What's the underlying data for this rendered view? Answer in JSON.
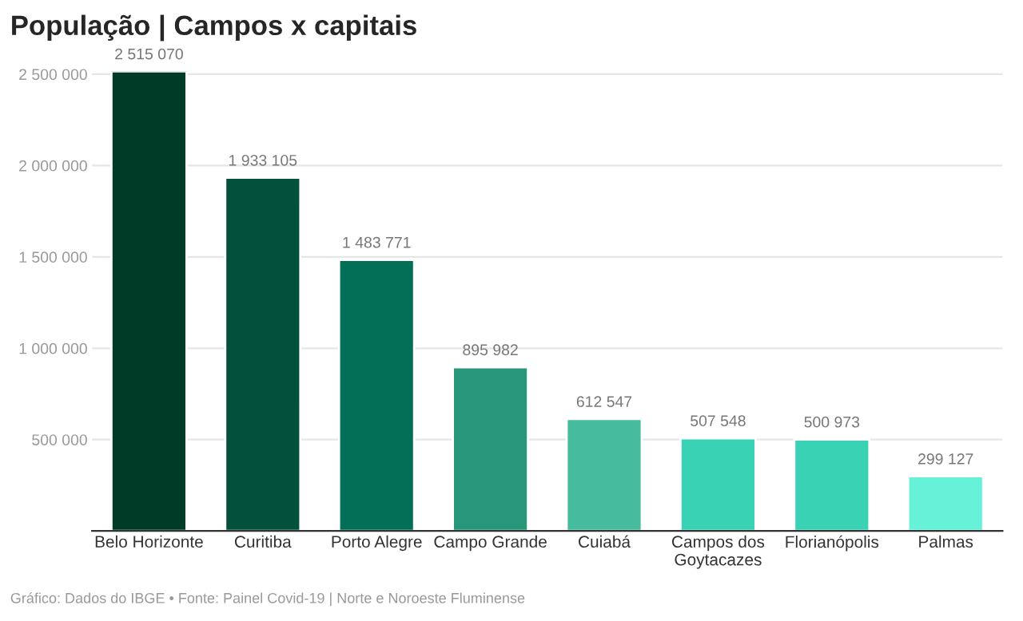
{
  "chart_data": {
    "type": "bar",
    "title": "População | Campos x capitais",
    "categories": [
      "Belo Horizonte",
      "Curitiba",
      "Porto Alegre",
      "Campo Grande",
      "Cuiabá",
      "Campos dos Goytacazes",
      "Florianópolis",
      "Palmas"
    ],
    "values": [
      2515070,
      1933105,
      1483771,
      895982,
      612547,
      507548,
      500973,
      299127
    ],
    "colors": [
      "#003b27",
      "#03513c",
      "#036f57",
      "#28967a",
      "#47bb9d",
      "#39d2b4",
      "#39d2b4",
      "#66f2d8"
    ],
    "value_labels": [
      "2 515 070",
      "1 933 105",
      "1 483 771",
      "895 982",
      "612 547",
      "507 548",
      "500 973",
      "299 127"
    ],
    "ylim": [
      0,
      2515070
    ],
    "yticks": [
      {
        "value": 500000,
        "label": "500 000"
      },
      {
        "value": 1000000,
        "label": "1 000 000"
      },
      {
        "value": 1500000,
        "label": "1 500 000"
      },
      {
        "value": 2000000,
        "label": "2 000 000"
      },
      {
        "value": 2500000,
        "label": "2 500 000"
      }
    ],
    "grid": "y",
    "annotations": [
      "Gráfico: Dados do IBGE • Fonte: Painel Covid-19 | Norte e Noroeste Fluminense"
    ]
  }
}
